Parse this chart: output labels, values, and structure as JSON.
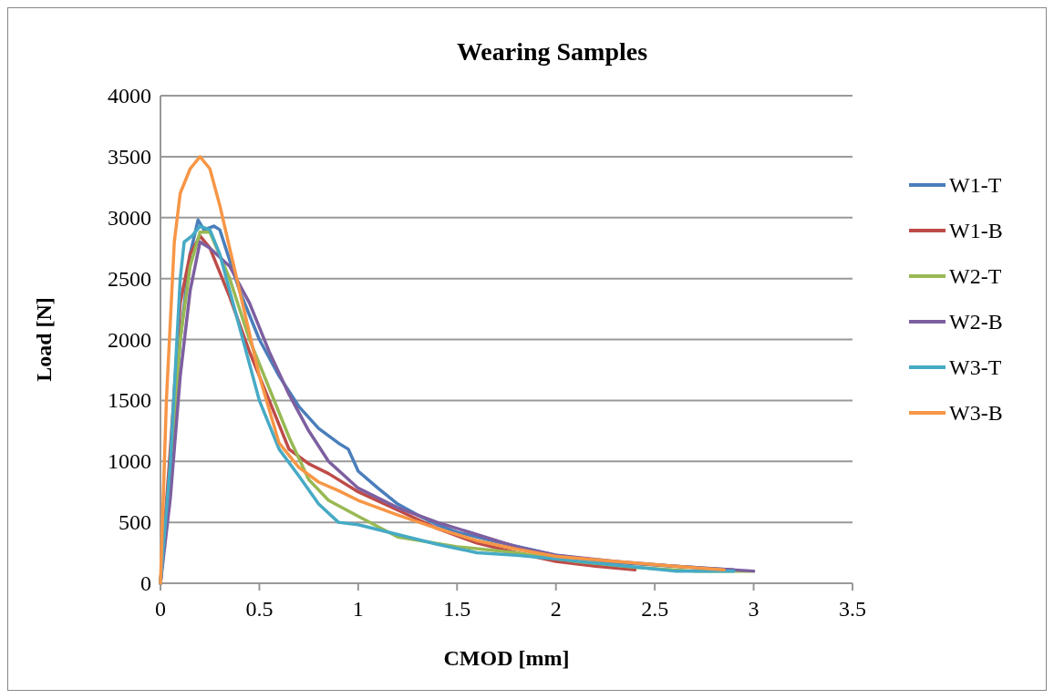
{
  "chart_data": {
    "type": "line",
    "title": "Wearing Samples",
    "xlabel": "CMOD [mm]",
    "ylabel": "Load [N]",
    "xlim": [
      0,
      3.5
    ],
    "xticks": [
      0,
      0.5,
      1,
      1.5,
      2,
      2.5,
      3,
      3.5
    ],
    "ylim": [
      0,
      4000
    ],
    "yticks": [
      0,
      500,
      1000,
      1500,
      2000,
      2500,
      3000,
      3500,
      4000
    ],
    "grid": "y",
    "legend": "right",
    "marker": "none",
    "line_style": "solid",
    "series": [
      {
        "name": "W1-T",
        "color": "#4a7ebb",
        "x": [
          0,
          0.05,
          0.1,
          0.15,
          0.19,
          0.22,
          0.27,
          0.3,
          0.4,
          0.5,
          0.6,
          0.7,
          0.8,
          0.9,
          0.95,
          1.0,
          1.1,
          1.2,
          1.3,
          1.4,
          1.5,
          1.7,
          2.0,
          2.3,
          2.6,
          2.9
        ],
        "values": [
          0,
          1000,
          2000,
          2700,
          2980,
          2900,
          2930,
          2900,
          2400,
          2000,
          1700,
          1450,
          1270,
          1150,
          1100,
          920,
          780,
          650,
          560,
          480,
          420,
          340,
          230,
          170,
          140,
          110
        ]
      },
      {
        "name": "W1-B",
        "color": "#be4b48",
        "x": [
          0,
          0.05,
          0.1,
          0.15,
          0.2,
          0.25,
          0.35,
          0.45,
          0.55,
          0.65,
          0.75,
          0.85,
          1.0,
          1.2,
          1.4,
          1.6,
          1.8,
          2.0,
          2.2,
          2.4
        ],
        "values": [
          0,
          1100,
          2300,
          2700,
          2850,
          2750,
          2350,
          1900,
          1500,
          1100,
          980,
          900,
          750,
          600,
          450,
          330,
          250,
          180,
          140,
          110
        ]
      },
      {
        "name": "W2-T",
        "color": "#98b954",
        "x": [
          0,
          0.05,
          0.1,
          0.15,
          0.2,
          0.25,
          0.35,
          0.45,
          0.55,
          0.65,
          0.75,
          0.85,
          1.0,
          1.2,
          1.5,
          1.8,
          2.1,
          2.4,
          2.7,
          3.0
        ],
        "values": [
          0,
          900,
          2000,
          2600,
          2880,
          2880,
          2500,
          2000,
          1600,
          1200,
          850,
          680,
          550,
          380,
          300,
          250,
          180,
          130,
          100,
          100
        ]
      },
      {
        "name": "W2-B",
        "color": "#7d5fa0",
        "x": [
          0,
          0.05,
          0.1,
          0.15,
          0.2,
          0.25,
          0.35,
          0.45,
          0.55,
          0.65,
          0.75,
          0.85,
          1.0,
          1.2,
          1.4,
          1.6,
          1.8,
          2.0,
          2.3,
          2.6,
          3.0
        ],
        "values": [
          0,
          700,
          1700,
          2400,
          2800,
          2750,
          2600,
          2300,
          1900,
          1550,
          1250,
          1000,
          780,
          620,
          500,
          400,
          300,
          230,
          180,
          140,
          100
        ]
      },
      {
        "name": "W3-T",
        "color": "#46aac5",
        "x": [
          0,
          0.05,
          0.1,
          0.12,
          0.16,
          0.2,
          0.25,
          0.3,
          0.4,
          0.5,
          0.6,
          0.7,
          0.8,
          0.9,
          1.0,
          1.2,
          1.4,
          1.6,
          1.8,
          2.0,
          2.3,
          2.6,
          2.9
        ],
        "values": [
          0,
          1000,
          2500,
          2800,
          2850,
          2930,
          2900,
          2700,
          2100,
          1500,
          1100,
          880,
          650,
          500,
          480,
          400,
          320,
          250,
          230,
          200,
          150,
          100,
          100
        ]
      },
      {
        "name": "W3-B",
        "color": "#f79646",
        "x": [
          0,
          0.03,
          0.07,
          0.1,
          0.15,
          0.2,
          0.25,
          0.3,
          0.4,
          0.5,
          0.6,
          0.7,
          0.8,
          0.9,
          1.0,
          1.2,
          1.4,
          1.6,
          1.8,
          2.0,
          2.3,
          2.6,
          2.85
        ],
        "values": [
          0,
          1500,
          2800,
          3200,
          3400,
          3500,
          3400,
          3100,
          2400,
          1700,
          1150,
          950,
          830,
          760,
          680,
          560,
          450,
          350,
          280,
          220,
          180,
          140,
          110
        ]
      }
    ]
  }
}
